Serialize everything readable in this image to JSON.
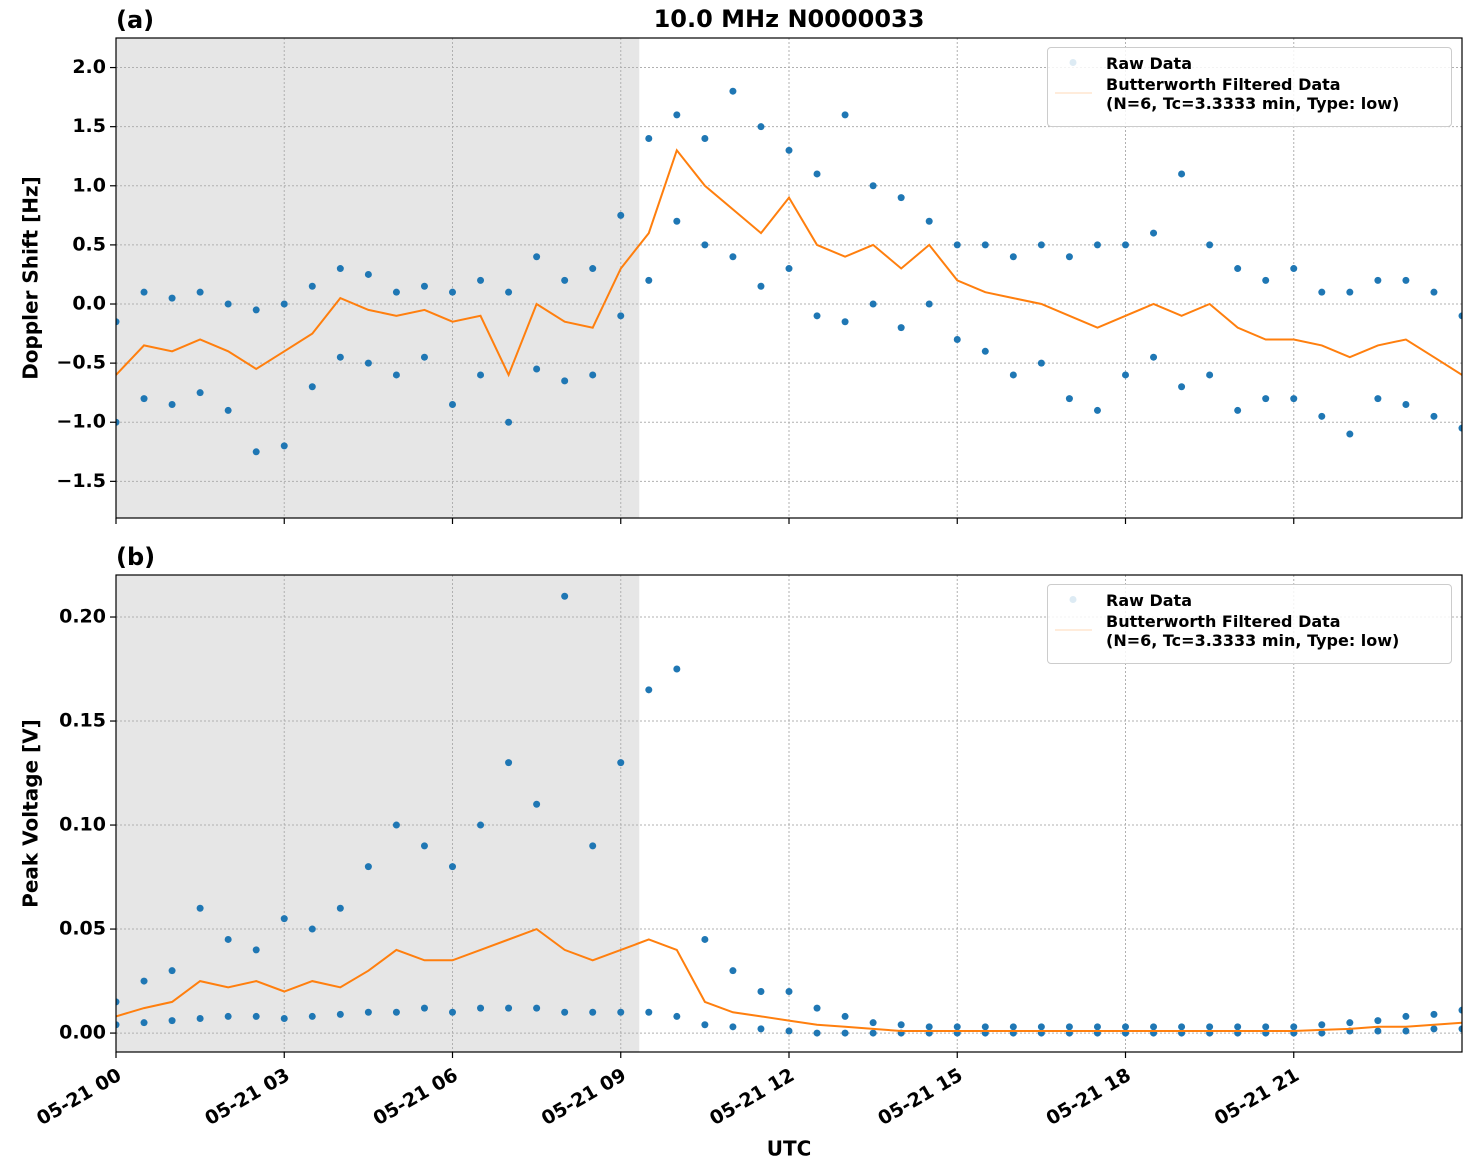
{
  "chart_data": [
    {
      "type": "scatter-line",
      "title": "10.0 MHz N0000033",
      "label": "(a)",
      "ylabel": "Doppler Shift [Hz]",
      "xlim": [
        0,
        24
      ],
      "xticks": [
        0,
        3,
        6,
        9,
        12,
        15,
        18,
        21
      ],
      "ylim": [
        -1.81,
        2.25
      ],
      "yticks": [
        {
          "value": -1.5,
          "label": "−1.5"
        },
        {
          "value": -1.0,
          "label": "−1.0"
        },
        {
          "value": -0.5,
          "label": "−0.5"
        },
        {
          "value": 0,
          "label": "0.0"
        },
        0.5,
        {
          "value": 1.0,
          "label": "1.0"
        },
        1.5,
        {
          "value": 2.0,
          "label": "2.0"
        }
      ],
      "grid": true,
      "legend": "upper right",
      "shade": [
        0,
        9.33
      ],
      "shade_color": "#e6e6e6",
      "series": [
        {
          "name": "Raw Data",
          "color": "#1f77b4",
          "style": "points",
          "x": [
            0,
            0,
            0.5,
            0.5,
            1,
            1,
            1.5,
            1.5,
            2,
            2,
            2.5,
            2.5,
            3,
            3,
            3.5,
            3.5,
            4,
            4,
            4.5,
            4.5,
            5,
            5,
            5.5,
            5.5,
            6,
            6,
            6.5,
            6.5,
            7,
            7,
            7.5,
            7.5,
            8,
            8,
            8.5,
            8.5,
            9,
            9,
            9.5,
            9.5,
            10,
            10,
            10.5,
            10.5,
            11,
            11,
            11.5,
            11.5,
            12,
            12,
            12.5,
            12.5,
            13,
            13,
            13.5,
            13.5,
            14,
            14,
            14.5,
            14.5,
            15,
            15,
            15.5,
            15.5,
            16,
            16,
            16.5,
            16.5,
            17,
            17,
            17.5,
            17.5,
            18,
            18,
            18.5,
            18.5,
            19,
            19,
            19.5,
            19.5,
            20,
            20,
            20.5,
            20.5,
            21,
            21,
            21.5,
            21.5,
            22,
            22,
            22.5,
            22.5,
            23,
            23,
            23.5,
            23.5,
            24,
            24
          ],
          "values": [
            -0.15,
            -1.0,
            0.1,
            -0.8,
            0.05,
            -0.85,
            0.1,
            -0.75,
            0.0,
            -0.9,
            -0.05,
            -1.25,
            0.0,
            -1.2,
            0.15,
            -0.7,
            0.3,
            -0.45,
            0.25,
            -0.5,
            0.1,
            -0.6,
            0.15,
            -0.45,
            0.1,
            -0.85,
            0.2,
            -0.6,
            0.1,
            -1.0,
            0.4,
            -0.55,
            0.2,
            -0.65,
            0.3,
            -0.6,
            0.75,
            -0.1,
            1.4,
            0.2,
            1.6,
            0.7,
            1.4,
            0.5,
            1.8,
            0.4,
            1.5,
            0.15,
            1.3,
            0.3,
            1.1,
            -0.1,
            1.6,
            -0.15,
            1.0,
            0.0,
            0.9,
            -0.2,
            0.7,
            0.0,
            0.5,
            -0.3,
            0.5,
            -0.4,
            0.4,
            -0.6,
            0.5,
            -0.5,
            0.4,
            -0.8,
            0.5,
            -0.9,
            0.5,
            -0.6,
            0.6,
            -0.45,
            1.1,
            -0.7,
            0.5,
            -0.6,
            0.3,
            -0.9,
            0.2,
            -0.8,
            0.3,
            -0.8,
            0.1,
            -0.95,
            0.1,
            -1.1,
            0.2,
            -0.8,
            0.2,
            -0.85,
            0.1,
            -0.95,
            -0.1,
            -1.05
          ]
        },
        {
          "name": "Butterworth Filtered Data\n(N=6, Tc=3.3333 min, Type: low)",
          "color": "#ff7f0e",
          "style": "line",
          "x": [
            0,
            0.5,
            1,
            1.5,
            2,
            2.5,
            3,
            3.5,
            4,
            4.5,
            5,
            5.5,
            6,
            6.5,
            7,
            7.5,
            8,
            8.5,
            9,
            9.5,
            10,
            10.5,
            11,
            11.5,
            12,
            12.5,
            13,
            13.5,
            14,
            14.5,
            15,
            15.5,
            16,
            16.5,
            17,
            17.5,
            18,
            18.5,
            19,
            19.5,
            20,
            20.5,
            21,
            21.5,
            22,
            22.5,
            23,
            23.5,
            24
          ],
          "values": [
            -0.6,
            -0.35,
            -0.4,
            -0.3,
            -0.4,
            -0.55,
            -0.4,
            -0.25,
            0.05,
            -0.05,
            -0.1,
            -0.05,
            -0.15,
            -0.1,
            -0.6,
            0.0,
            -0.15,
            -0.2,
            0.3,
            0.6,
            1.3,
            1.0,
            0.8,
            0.6,
            0.9,
            0.5,
            0.4,
            0.5,
            0.3,
            0.5,
            0.2,
            0.1,
            0.05,
            0.0,
            -0.1,
            -0.2,
            -0.1,
            0.0,
            -0.1,
            0.0,
            -0.2,
            -0.3,
            -0.3,
            -0.35,
            -0.45,
            -0.35,
            -0.3,
            -0.45,
            -0.6
          ]
        }
      ]
    },
    {
      "type": "scatter-line",
      "label": "(b)",
      "ylabel": "Peak Voltage [V]",
      "xlabel": "UTC",
      "xlim": [
        0,
        24
      ],
      "xticks": [
        {
          "value": 0,
          "label": "05-21 00"
        },
        {
          "value": 3,
          "label": "05-21 03"
        },
        {
          "value": 6,
          "label": "05-21 06"
        },
        {
          "value": 9,
          "label": "05-21 09"
        },
        {
          "value": 12,
          "label": "05-21 12"
        },
        {
          "value": 15,
          "label": "05-21 15"
        },
        {
          "value": 18,
          "label": "05-21 18"
        },
        {
          "value": 21,
          "label": "05-21 21"
        }
      ],
      "ylim": [
        -0.0091,
        0.2202
      ],
      "yticks": [
        {
          "value": 0,
          "label": "0.00"
        },
        0.05,
        {
          "value": 0.1,
          "label": "0.10"
        },
        0.15,
        {
          "value": 0.2,
          "label": "0.20"
        }
      ],
      "grid": true,
      "legend": "upper right",
      "shade": [
        0,
        9.33
      ],
      "shade_color": "#e6e6e6",
      "series": [
        {
          "name": "Raw Data",
          "color": "#1f77b4",
          "style": "points",
          "x": [
            0,
            0,
            0.5,
            0.5,
            1,
            1,
            1.5,
            1.5,
            2,
            2,
            2.5,
            2.5,
            3,
            3,
            3.5,
            3.5,
            4,
            4,
            4.5,
            4.5,
            5,
            5,
            5.5,
            5.5,
            6,
            6,
            6.5,
            6.5,
            7,
            7,
            7.5,
            7.5,
            8,
            8,
            8.5,
            8.5,
            9,
            9,
            9.5,
            9.5,
            10,
            10,
            10.5,
            10.5,
            11,
            11,
            11.5,
            11.5,
            12,
            12,
            12.5,
            12.5,
            13,
            13,
            13.5,
            13.5,
            14,
            14,
            14.5,
            14.5,
            15,
            15,
            15.5,
            15.5,
            16,
            16,
            16.5,
            16.5,
            17,
            17,
            17.5,
            17.5,
            18,
            18,
            18.5,
            18.5,
            19,
            19,
            19.5,
            19.5,
            20,
            20,
            20.5,
            20.5,
            21,
            21,
            21.5,
            21.5,
            22,
            22,
            22.5,
            22.5,
            23,
            23,
            23.5,
            23.5,
            24,
            24
          ],
          "values": [
            0.015,
            0.004,
            0.025,
            0.005,
            0.03,
            0.006,
            0.06,
            0.007,
            0.045,
            0.008,
            0.04,
            0.008,
            0.055,
            0.007,
            0.05,
            0.008,
            0.06,
            0.009,
            0.08,
            0.01,
            0.1,
            0.01,
            0.09,
            0.012,
            0.08,
            0.01,
            0.1,
            0.012,
            0.13,
            0.012,
            0.11,
            0.012,
            0.21,
            0.01,
            0.09,
            0.01,
            0.13,
            0.01,
            0.165,
            0.01,
            0.175,
            0.008,
            0.045,
            0.004,
            0.03,
            0.003,
            0.02,
            0.002,
            0.02,
            0.001,
            0.012,
            0.0,
            0.008,
            0.0,
            0.005,
            0.0,
            0.004,
            0.0,
            0.003,
            0.0,
            0.003,
            0.0,
            0.003,
            0.0,
            0.003,
            0.0,
            0.003,
            0.0,
            0.003,
            0.0,
            0.003,
            0.0,
            0.003,
            0.0,
            0.003,
            0.0,
            0.003,
            0.0,
            0.003,
            0.0,
            0.003,
            0.0,
            0.003,
            0.0,
            0.003,
            0.0,
            0.004,
            0.0,
            0.005,
            0.001,
            0.006,
            0.001,
            0.008,
            0.001,
            0.009,
            0.002,
            0.011,
            0.002
          ]
        },
        {
          "name": "Butterworth Filtered Data\n(N=6, Tc=3.3333 min, Type: low)",
          "color": "#ff7f0e",
          "style": "line",
          "x": [
            0,
            0.5,
            1,
            1.5,
            2,
            2.5,
            3,
            3.5,
            4,
            4.5,
            5,
            5.5,
            6,
            6.5,
            7,
            7.5,
            8,
            8.5,
            9,
            9.5,
            10,
            10.5,
            11,
            11.5,
            12,
            12.5,
            13,
            13.5,
            14,
            14.5,
            15,
            15.5,
            16,
            16.5,
            17,
            17.5,
            18,
            18.5,
            19,
            19.5,
            20,
            20.5,
            21,
            21.5,
            22,
            22.5,
            23,
            23.5,
            24
          ],
          "values": [
            0.008,
            0.012,
            0.015,
            0.025,
            0.022,
            0.025,
            0.02,
            0.025,
            0.022,
            0.03,
            0.04,
            0.035,
            0.035,
            0.04,
            0.045,
            0.05,
            0.04,
            0.035,
            0.04,
            0.045,
            0.04,
            0.015,
            0.01,
            0.008,
            0.006,
            0.004,
            0.003,
            0.002,
            0.001,
            0.001,
            0.001,
            0.001,
            0.001,
            0.001,
            0.001,
            0.001,
            0.001,
            0.001,
            0.001,
            0.001,
            0.001,
            0.001,
            0.001,
            0.0015,
            0.002,
            0.003,
            0.003,
            0.004,
            0.005
          ]
        }
      ]
    }
  ]
}
